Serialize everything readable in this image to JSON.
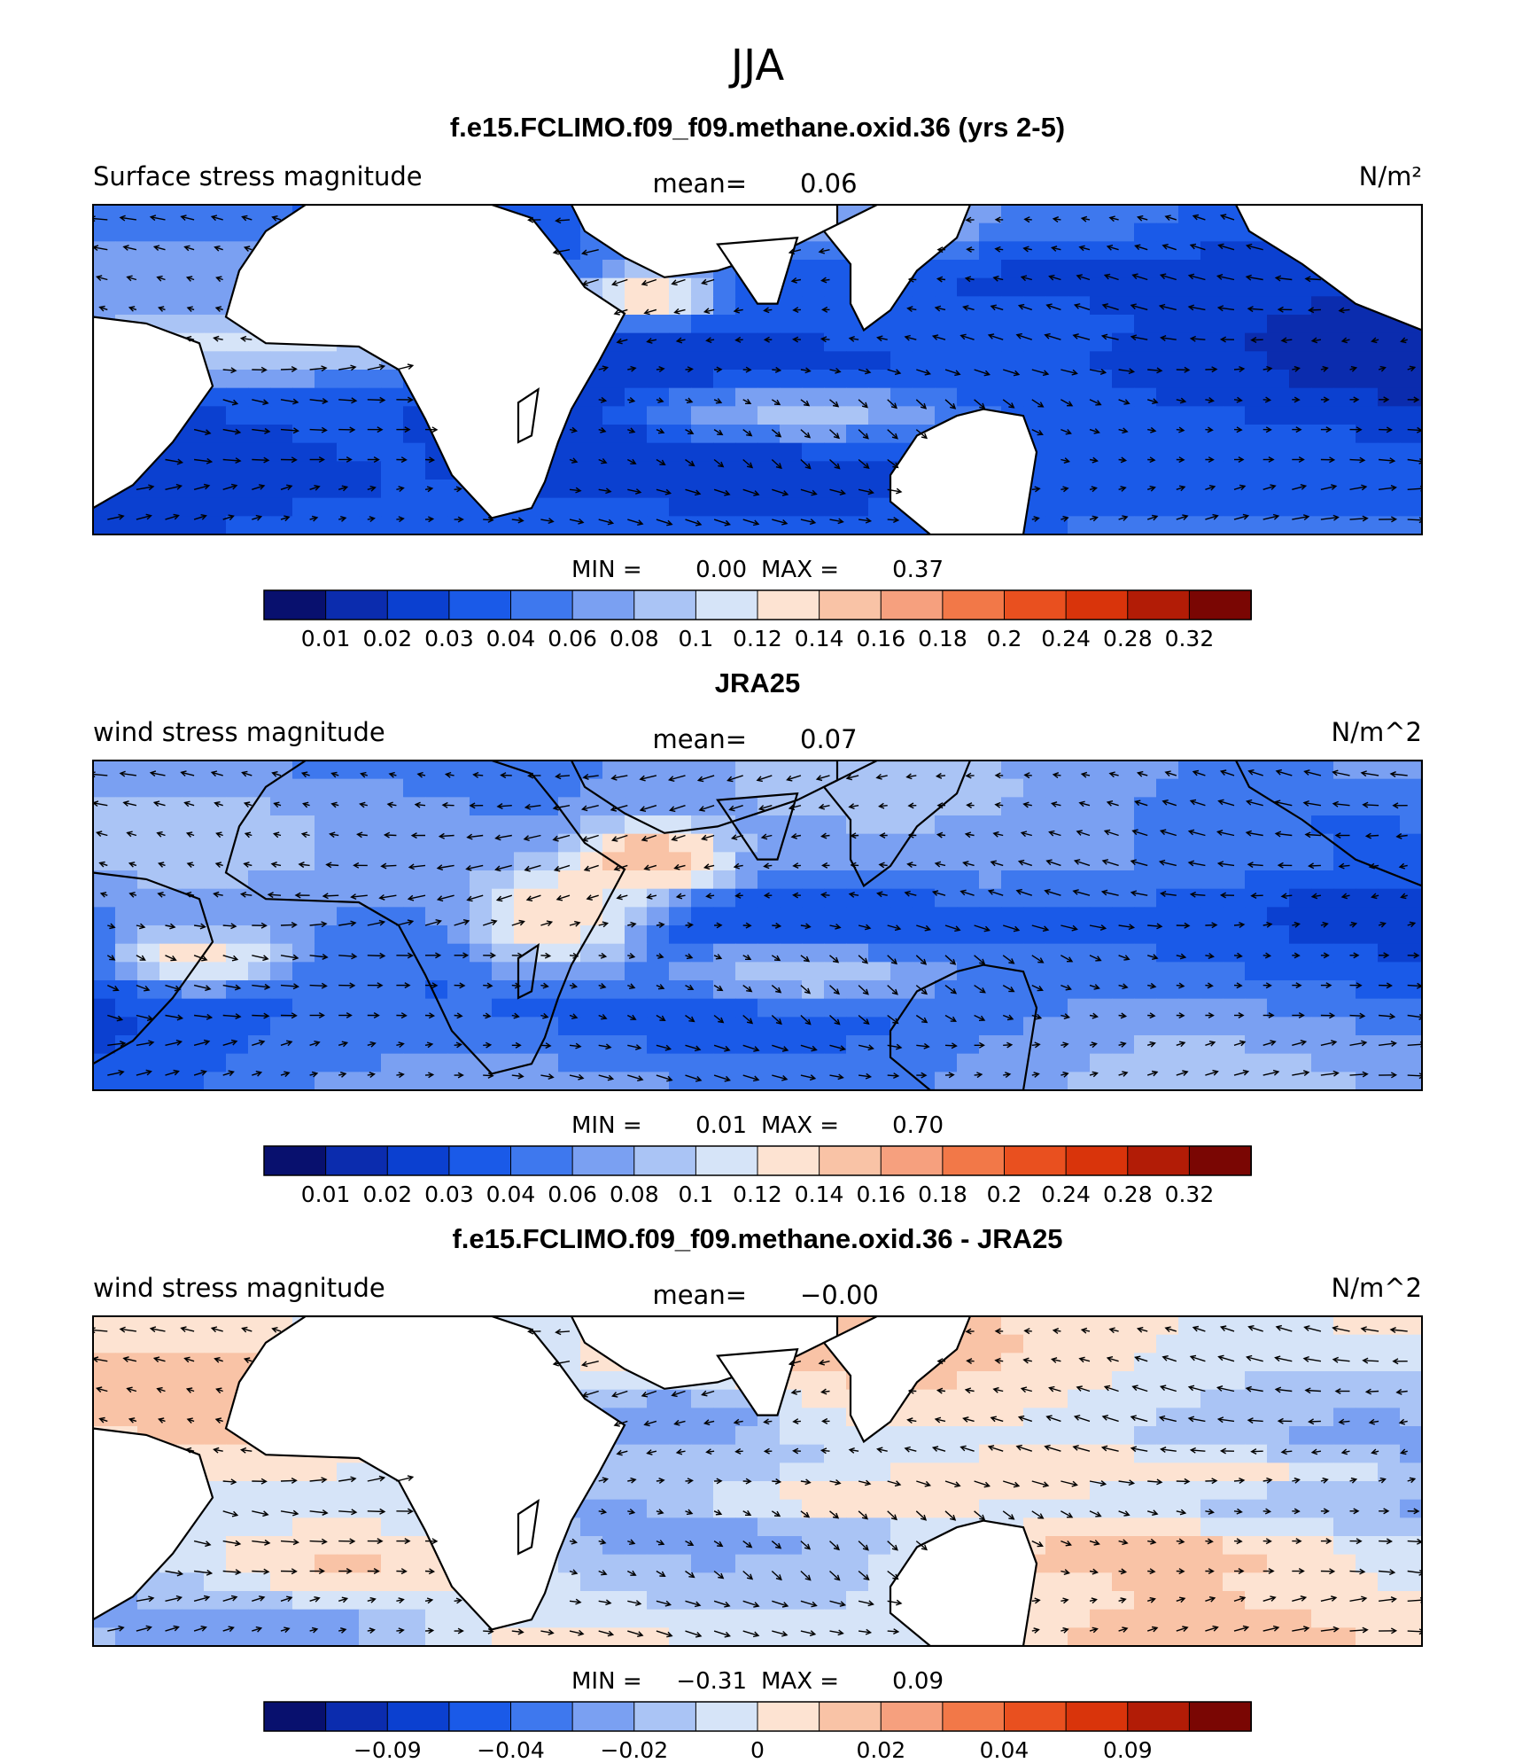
{
  "figure": {
    "title": "JJA"
  },
  "chart_data": [
    {
      "type": "heatmap",
      "title": "f.e15.FCLIMO.f09_f09.methane.oxid.36 (yrs 2-5)",
      "left_label": "Surface stress magnitude",
      "mean_label": "mean=",
      "mean_value": "0.06",
      "units": "N/m²",
      "min_label": "MIN =",
      "min_value": "0.00",
      "max_label": "MAX =",
      "max_value": "0.37",
      "colorbar_ticks": [
        "0.01",
        "0.02",
        "0.03",
        "0.04",
        "0.06",
        "0.08",
        "0.1",
        "0.12",
        "0.14",
        "0.16",
        "0.18",
        "0.2",
        "0.24",
        "0.28",
        "0.32"
      ],
      "colors": [
        "#08106e",
        "#0b2cae",
        "#0b40d0",
        "#1a5ae8",
        "#3e78ee",
        "#7aa0f2",
        "#aac4f5",
        "#d6e4f8",
        "#fde3d2",
        "#f9c3a6",
        "#f6a07e",
        "#f27848",
        "#e9501f",
        "#d9340b",
        "#b21c06",
        "#7a0603"
      ],
      "vectors": true,
      "field": {
        "bg": 3,
        "regions": [
          [
            0.13,
            0.43,
            9,
            0.12,
            0.08
          ],
          [
            0.42,
            0.27,
            13,
            0.04,
            0.07
          ],
          [
            0.53,
            0.63,
            9,
            0.1,
            0.08
          ],
          [
            0.24,
            0.88,
            2,
            0.3,
            0.1
          ],
          [
            0.77,
            0.88,
            2,
            0.22,
            0.1
          ],
          [
            0.72,
            0.22,
            1,
            0.2,
            0.08
          ]
        ]
      },
      "land": {
        "north_america": true
      }
    },
    {
      "type": "heatmap",
      "title": "JRA25",
      "left_label": "wind stress magnitude",
      "mean_label": "mean=",
      "mean_value": "0.07",
      "units": "N/m^2",
      "min_label": "MIN =",
      "min_value": "0.01",
      "max_label": "MAX =",
      "max_value": "0.70",
      "colorbar_ticks": [
        "0.01",
        "0.02",
        "0.03",
        "0.04",
        "0.06",
        "0.08",
        "0.1",
        "0.12",
        "0.14",
        "0.16",
        "0.18",
        "0.2",
        "0.24",
        "0.28",
        "0.32"
      ],
      "colors": [
        "#08106e",
        "#0b2cae",
        "#0b40d0",
        "#1a5ae8",
        "#3e78ee",
        "#7aa0f2",
        "#aac4f5",
        "#d6e4f8",
        "#fde3d2",
        "#f9c3a6",
        "#f6a07e",
        "#f27848",
        "#e9501f",
        "#d9340b",
        "#b21c06",
        "#7a0603"
      ],
      "vectors": true,
      "field": {
        "bg": 4,
        "regions": [
          [
            0.35,
            0.48,
            12,
            0.06,
            0.14
          ],
          [
            0.42,
            0.3,
            13,
            0.05,
            0.09
          ],
          [
            0.08,
            0.6,
            11,
            0.05,
            0.07
          ],
          [
            0.53,
            0.64,
            9,
            0.09,
            0.08
          ],
          [
            0.6,
            0.5,
            2,
            0.1,
            0.07
          ],
          [
            0.78,
            0.3,
            5,
            0.17,
            0.08
          ]
        ]
      },
      "land": {
        "north_america": true
      }
    },
    {
      "type": "heatmap",
      "title": "f.e15.FCLIMO.f09_f09.methane.oxid.36 - JRA25",
      "left_label": "wind stress magnitude",
      "mean_label": "mean=",
      "mean_value": "−0.00",
      "units": "N/m^2",
      "min_label": "MIN =",
      "min_value": "−0.31",
      "max_label": "MAX =",
      "max_value": "0.09",
      "colorbar_ticks": [
        "−0.09",
        "−0.04",
        "−0.02",
        "0",
        "0.02",
        "0.04",
        "0.09"
      ],
      "colors": [
        "#08106e",
        "#0b2cae",
        "#0b40d0",
        "#1a5ae8",
        "#3e78ee",
        "#7aa0f2",
        "#aac4f5",
        "#d6e4f8",
        "#fde3d2",
        "#f9c3a6",
        "#f6a07e",
        "#f27848",
        "#e9501f",
        "#d9340b",
        "#b21c06",
        "#7a0603"
      ],
      "vectors": true,
      "field": {
        "bg": 7,
        "regions": [
          [
            0.19,
            0.73,
            10,
            0.1,
            0.08
          ],
          [
            0.57,
            0.55,
            10,
            0.1,
            0.06
          ],
          [
            0.78,
            0.72,
            10,
            0.13,
            0.07
          ],
          [
            0.8,
            0.47,
            10,
            0.15,
            0.05
          ],
          [
            0.44,
            0.3,
            3,
            0.06,
            0.07
          ],
          [
            0.15,
            0.95,
            3,
            0.1,
            0.06
          ]
        ]
      },
      "land": {
        "north_america": false
      }
    }
  ]
}
